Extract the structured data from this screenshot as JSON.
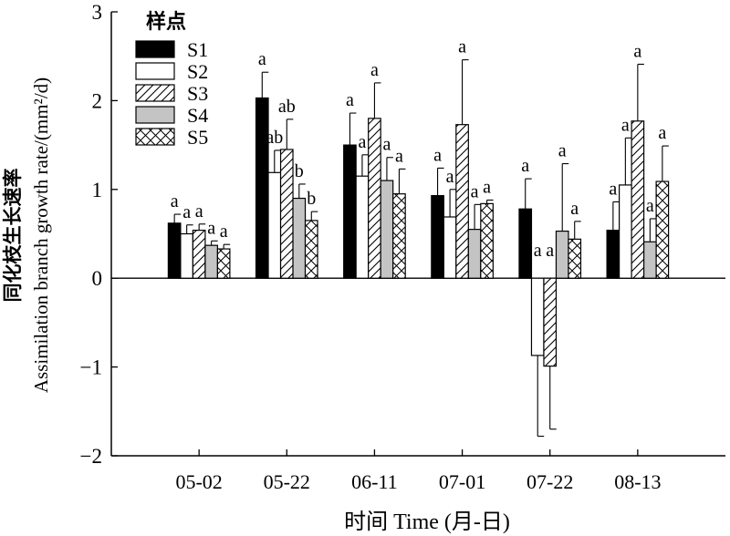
{
  "chart_data": {
    "type": "bar",
    "title": "",
    "xlabel": "时间 Time (月-日)",
    "ylabel_line1": "同化枝生长速率",
    "ylabel_line2": "Assimilation branch growth rate/(mm²/d)",
    "ylim": [
      -2,
      3
    ],
    "yticks": [
      {
        "value": -2,
        "label": "−2"
      },
      {
        "value": -1,
        "label": "−1"
      },
      {
        "value": 0,
        "label": "0"
      },
      {
        "value": 1,
        "label": "1"
      },
      {
        "value": 2,
        "label": "2"
      },
      {
        "value": 3,
        "label": "3"
      }
    ],
    "grid": false,
    "legend": {
      "title": "样点",
      "position": "top-left"
    },
    "categories": [
      "05-02",
      "05-22",
      "06-11",
      "07-01",
      "07-22",
      "08-13"
    ],
    "series": [
      {
        "name": "S1",
        "pattern": "solid-black",
        "values": [
          0.62,
          2.03,
          1.5,
          0.93,
          0.78,
          0.54
        ],
        "errors": [
          0.1,
          0.29,
          0.36,
          0.31,
          0.34,
          0.32
        ],
        "letters": [
          "a",
          "a",
          "a",
          "a",
          "a",
          "a"
        ]
      },
      {
        "name": "S2",
        "pattern": "white",
        "values": [
          0.5,
          1.19,
          1.15,
          0.69,
          -0.87,
          1.05
        ],
        "errors": [
          0.1,
          0.25,
          0.24,
          0.31,
          0.91,
          0.53
        ],
        "letters": [
          "a",
          "ab",
          "a",
          "a",
          "a",
          "a"
        ]
      },
      {
        "name": "S3",
        "pattern": "diagonal",
        "values": [
          0.54,
          1.45,
          1.8,
          1.73,
          -0.99,
          1.77
        ],
        "errors": [
          0.07,
          0.34,
          0.4,
          0.73,
          0.71,
          0.64
        ],
        "letters": [
          "a",
          "ab",
          "a",
          "a",
          "a",
          "a"
        ]
      },
      {
        "name": "S4",
        "pattern": "gray",
        "values": [
          0.37,
          0.9,
          1.1,
          0.55,
          0.53,
          0.41
        ],
        "errors": [
          0.05,
          0.16,
          0.26,
          0.28,
          0.76,
          0.26
        ],
        "letters": [
          "a",
          "b",
          "a",
          "a",
          "a",
          "a"
        ]
      },
      {
        "name": "S5",
        "pattern": "crosshatch",
        "values": [
          0.33,
          0.65,
          0.95,
          0.84,
          0.44,
          1.09
        ],
        "errors": [
          0.05,
          0.1,
          0.28,
          0.04,
          0.2,
          0.4
        ],
        "letters": [
          "a",
          "b",
          "a",
          "a",
          "a",
          "a"
        ]
      }
    ]
  }
}
